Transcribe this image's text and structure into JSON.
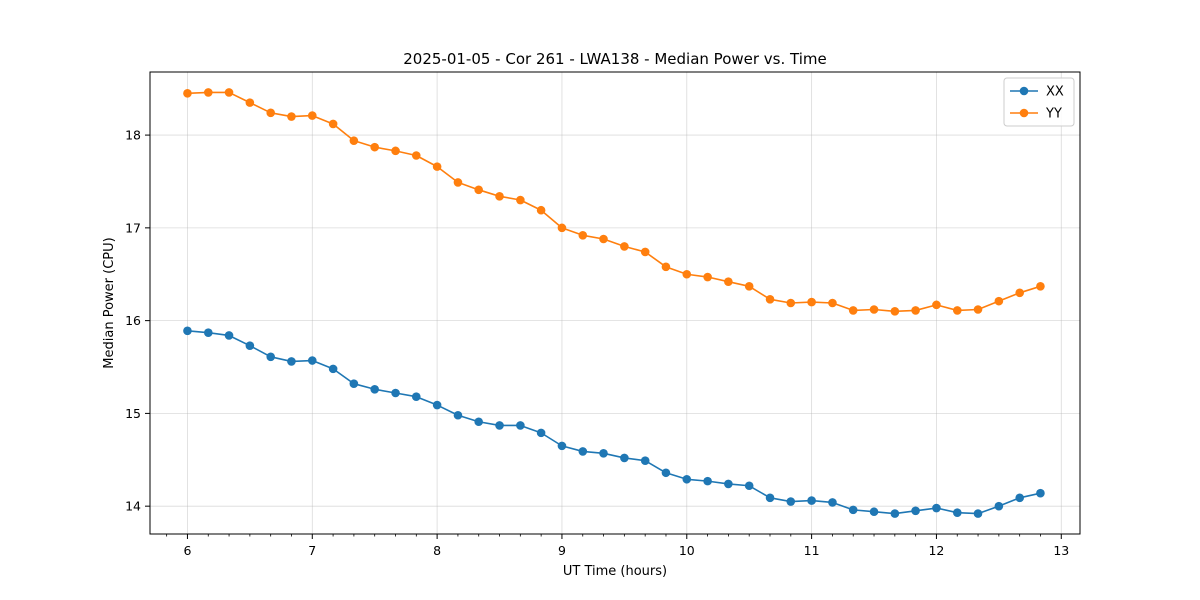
{
  "chart_data": {
    "type": "line",
    "title": "2025-01-05 - Cor 261 - LWA138 - Median Power vs. Time",
    "xlabel": "UT Time (hours)",
    "ylabel": "Median Power (CPU)",
    "xlim": [
      5.7,
      13.15
    ],
    "ylim": [
      13.7,
      18.68
    ],
    "xticks": [
      6,
      7,
      8,
      9,
      10,
      11,
      12,
      13
    ],
    "yticks": [
      14,
      15,
      16,
      17,
      18
    ],
    "grid": true,
    "legend_position": "top-right",
    "x": [
      6.0,
      6.167,
      6.333,
      6.5,
      6.667,
      6.833,
      7.0,
      7.167,
      7.333,
      7.5,
      7.667,
      7.833,
      8.0,
      8.167,
      8.333,
      8.5,
      8.667,
      8.833,
      9.0,
      9.167,
      9.333,
      9.5,
      9.667,
      9.833,
      10.0,
      10.167,
      10.333,
      10.5,
      10.667,
      10.833,
      11.0,
      11.167,
      11.333,
      11.5,
      11.667,
      11.833,
      12.0,
      12.167,
      12.333,
      12.5,
      12.667,
      12.833
    ],
    "series": [
      {
        "name": "XX",
        "color": "#1f77b4",
        "values": [
          15.89,
          15.87,
          15.84,
          15.73,
          15.61,
          15.56,
          15.57,
          15.48,
          15.32,
          15.26,
          15.22,
          15.18,
          15.09,
          14.98,
          14.91,
          14.87,
          14.87,
          14.79,
          14.65,
          14.59,
          14.57,
          14.52,
          14.49,
          14.36,
          14.29,
          14.27,
          14.24,
          14.22,
          14.09,
          14.05,
          14.06,
          14.04,
          13.96,
          13.94,
          13.92,
          13.95,
          13.98,
          13.93,
          13.92,
          14.0,
          14.09,
          14.14
        ]
      },
      {
        "name": "YY",
        "color": "#ff7f0e",
        "values": [
          18.45,
          18.46,
          18.46,
          18.35,
          18.24,
          18.2,
          18.21,
          18.12,
          17.94,
          17.87,
          17.83,
          17.78,
          17.66,
          17.49,
          17.41,
          17.34,
          17.3,
          17.19,
          17.0,
          16.92,
          16.88,
          16.8,
          16.74,
          16.58,
          16.5,
          16.47,
          16.42,
          16.37,
          16.23,
          16.19,
          16.2,
          16.19,
          16.11,
          16.12,
          16.1,
          16.11,
          16.17,
          16.11,
          16.12,
          16.21,
          16.3,
          16.37
        ]
      }
    ]
  }
}
